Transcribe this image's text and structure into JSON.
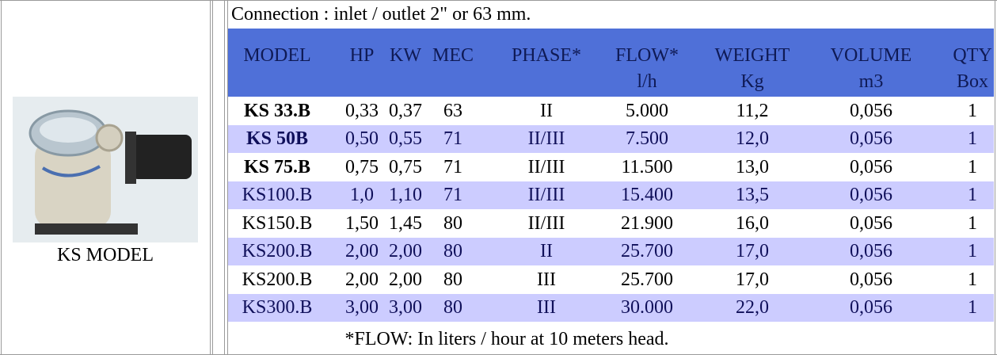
{
  "left": {
    "caption": "KS MODEL"
  },
  "table": {
    "note": "Connection : inlet / outlet 2\" or 63 mm.",
    "header": [
      "MODEL",
      "HP",
      "KW",
      "MEC",
      "PHASE*",
      "FLOW*",
      "WEIGHT",
      "VOLUME",
      "QTY"
    ],
    "units": [
      "l/h",
      "Kg",
      "m3",
      "Box"
    ],
    "rows": [
      [
        "KS 33.B",
        "0,33",
        "0,37",
        "63",
        "II",
        "5.000",
        "11,2",
        "0,056",
        "1"
      ],
      [
        "KS 50B",
        "0,50",
        "0,55",
        "71",
        "II/III",
        "7.500",
        "12,0",
        "0,056",
        "1"
      ],
      [
        "KS 75.B",
        "0,75",
        "0,75",
        "71",
        "II/III",
        "11.500",
        "13,0",
        "0,056",
        "1"
      ],
      [
        "KS100.B",
        "1,0",
        "1,10",
        "71",
        "II/III",
        "15.400",
        "13,5",
        "0,056",
        "1"
      ],
      [
        "KS150.B",
        "1,50",
        "1,45",
        "80",
        "II/III",
        "21.900",
        "16,0",
        "0,056",
        "1"
      ],
      [
        "KS200.B",
        "2,00",
        "2,00",
        "80",
        "II",
        "25.700",
        "17,0",
        "0,056",
        "1"
      ],
      [
        "KS200.B",
        "2,00",
        "2,00",
        "80",
        "III",
        "25.700",
        "17,0",
        "0,056",
        "1"
      ],
      [
        "KS300.B",
        "3,00",
        "3,00",
        "80",
        "III",
        "30.000",
        "22,0",
        "0,056",
        "1"
      ]
    ],
    "footer": "*FLOW: In liters / hour at 10 meters head."
  }
}
